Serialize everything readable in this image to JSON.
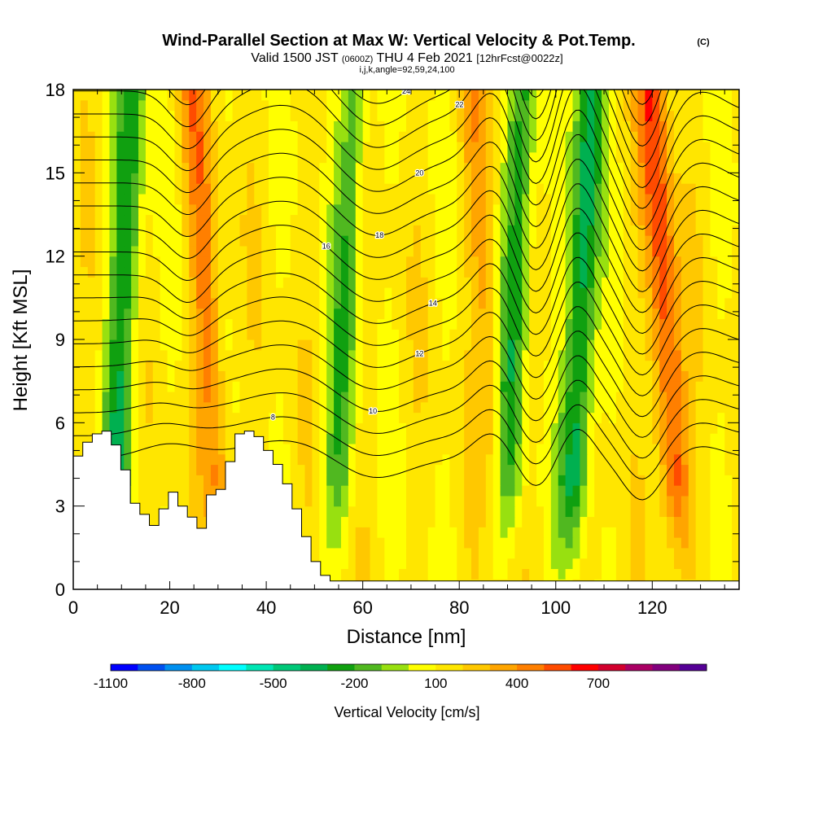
{
  "chart_data": {
    "type": "heatmap",
    "title": "Wind-Parallel Section at Max W: Vertical Velocity & Pot.Temp.",
    "title_mark": "(C)",
    "subtitle": {
      "prefix": "Valid 1500 JST",
      "utc": "(0600Z)",
      "date": "THU 4 Feb 2021",
      "fcst": "[12hrFcst@0022z]"
    },
    "params": "i,j,k,angle=92,59,24,100",
    "xlabel": "Distance [nm]",
    "ylabel": "Height [Kft MSL]",
    "xlim": [
      0,
      138
    ],
    "ylim": [
      0,
      18
    ],
    "x_ticks": [
      "0",
      "20",
      "40",
      "60",
      "80",
      "100",
      "120"
    ],
    "y_ticks": [
      "0",
      "3",
      "6",
      "9",
      "12",
      "15",
      "18"
    ],
    "grid": false,
    "colorbar": {
      "label": "Vertical Velocity [cm/s]",
      "tick_labels": [
        "-1100",
        "-800",
        "-500",
        "-200",
        "100",
        "400",
        "700"
      ],
      "colors": [
        "#0000ff",
        "#0050f0",
        "#0090f0",
        "#00c8f0",
        "#00ffff",
        "#00e6b4",
        "#00c878",
        "#00b050",
        "#10a010",
        "#50b820",
        "#98e010",
        "#ffff00",
        "#ffe600",
        "#ffc800",
        "#ffa500",
        "#ff7f00",
        "#ff4b00",
        "#ff0000",
        "#d2002d",
        "#aa0064",
        "#82007d",
        "#550096"
      ]
    },
    "velocity_peaks": [
      {
        "x": 10,
        "value": -400
      },
      {
        "x": 28,
        "value": 300
      },
      {
        "x": 56,
        "value": -300
      },
      {
        "x": 86,
        "value": 200
      },
      {
        "x": 91,
        "value": -400
      },
      {
        "x": 105,
        "value": -500
      },
      {
        "x": 123,
        "value": 450
      }
    ],
    "theta_contours": [
      {
        "label": "8",
        "label_x": 0.3
      },
      {
        "label": "10",
        "label_x": 0.45
      },
      {
        "label": "12",
        "label_x": 0.52
      },
      {
        "label": "14",
        "label_x": 0.54
      },
      {
        "label": "16",
        "label_x": 0.38
      },
      {
        "label": "18",
        "label_x": 0.46
      },
      {
        "label": "20",
        "label_x": 0.52
      },
      {
        "label": "22",
        "label_x": 0.58
      },
      {
        "label": "24",
        "label_x": 0.5
      }
    ],
    "terrain_heights": [
      4.8,
      5.3,
      5.6,
      5.7,
      5.2,
      4.3,
      3.1,
      2.7,
      2.3,
      2.9,
      3.5,
      3.0,
      2.6,
      2.2,
      3.4,
      3.6,
      4.6,
      5.6,
      5.7,
      5.5,
      5.0,
      4.5,
      3.8,
      2.9,
      1.9,
      1.0,
      0.5,
      0.3,
      0.3,
      0.3,
      0.3,
      0.3,
      0.3,
      0.3,
      0.3,
      0.3,
      0.3,
      0.3,
      0.3,
      0.3,
      0.3,
      0.3,
      0.3,
      0.3,
      0.3,
      0.3,
      0.3,
      0.3,
      0.3,
      0.3,
      0.3,
      0.3,
      0.3,
      0.3,
      0.3,
      0.3,
      0.3,
      0.3,
      0.3,
      0.3,
      0.3,
      0.3,
      0.3,
      0.3,
      0.3,
      0.3,
      0.3,
      0.3,
      0.3,
      0.3
    ]
  }
}
